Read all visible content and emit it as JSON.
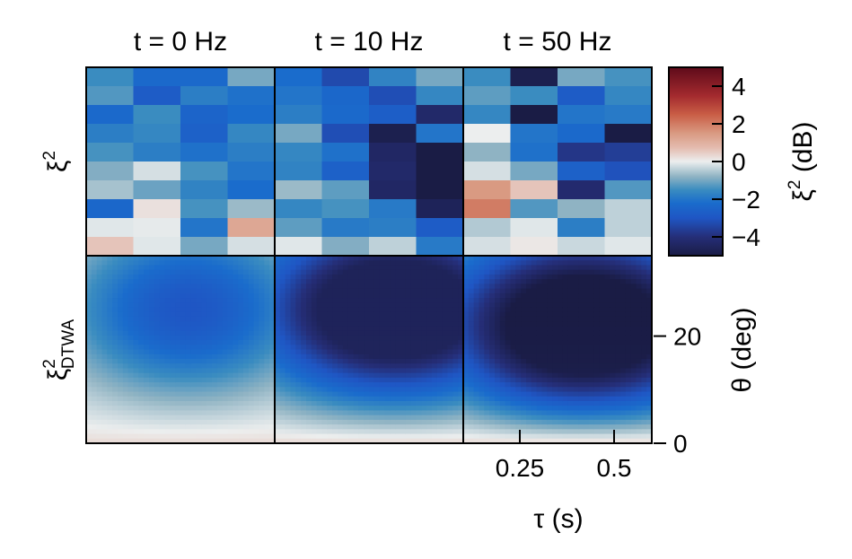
{
  "figure": {
    "row_labels": [
      {
        "base": "ξ",
        "sup": "2",
        "sub": ""
      },
      {
        "base": "ξ",
        "sup": "2",
        "sub": "DTWA"
      }
    ]
  },
  "colorbar": {
    "label_base": "ξ",
    "label_sup": "2",
    "label_rest": " (dB)",
    "ticks": [
      {
        "value": 4,
        "label": "4"
      },
      {
        "value": 2,
        "label": "2"
      },
      {
        "value": 0,
        "label": "0"
      },
      {
        "value": -2,
        "label": "−2"
      },
      {
        "value": -4,
        "label": "−4"
      }
    ],
    "range": [
      -5,
      5
    ],
    "stops": [
      {
        "v": -5,
        "color": "#1a1c45"
      },
      {
        "v": -4,
        "color": "#252e78"
      },
      {
        "v": -3,
        "color": "#1f56c4"
      },
      {
        "v": -2.2,
        "color": "#1a6ccc"
      },
      {
        "v": -1.5,
        "color": "#3a8cc0"
      },
      {
        "v": -0.8,
        "color": "#8fb3c3"
      },
      {
        "v": 0,
        "color": "#eceeee"
      },
      {
        "v": 0.7,
        "color": "#e4bdb1"
      },
      {
        "v": 1.5,
        "color": "#d99a82"
      },
      {
        "v": 2.5,
        "color": "#c95d45"
      },
      {
        "v": 3.5,
        "color": "#a32a2e"
      },
      {
        "v": 5,
        "color": "#5e0a1a"
      }
    ]
  },
  "chart_data": [
    {
      "type": "heatmap",
      "title": "t = 0 Hz",
      "row": "ξ²",
      "rows": 10,
      "cols": 4,
      "values": [
        [
          -1.5,
          -2.3,
          -2.3,
          -1.0
        ],
        [
          -1.3,
          -2.8,
          -1.8,
          -2.1
        ],
        [
          -2.3,
          -1.5,
          -2.5,
          -2.2
        ],
        [
          -1.8,
          -1.6,
          -2.6,
          -1.6
        ],
        [
          -1.4,
          -1.8,
          -2.1,
          -1.8
        ],
        [
          -0.9,
          -0.2,
          -1.4,
          -2.0
        ],
        [
          -0.6,
          -1.1,
          -1.7,
          -2.2
        ],
        [
          -2.4,
          0.2,
          -1.4,
          -0.7
        ],
        [
          -0.1,
          -0.05,
          -2.0,
          1.2
        ],
        [
          0.6,
          -0.1,
          -1.0,
          -0.2
        ]
      ]
    },
    {
      "type": "heatmap",
      "title": "t = 10 Hz",
      "row": "ξ²",
      "rows": 10,
      "cols": 4,
      "values": [
        [
          -2.2,
          -3.3,
          -1.7,
          -1.0
        ],
        [
          -2.0,
          -2.4,
          -3.2,
          -1.6
        ],
        [
          -1.8,
          -2.3,
          -2.7,
          -4.3
        ],
        [
          -1.0,
          -3.2,
          -4.8,
          -2.0
        ],
        [
          -1.6,
          -2.1,
          -4.4,
          -5.0
        ],
        [
          -1.7,
          -2.6,
          -4.3,
          -5.0
        ],
        [
          -0.7,
          -1.2,
          -4.4,
          -5.0
        ],
        [
          -1.6,
          -1.4,
          -1.9,
          -4.6
        ],
        [
          -1.2,
          -1.9,
          -1.8,
          -2.8
        ],
        [
          -0.1,
          -0.9,
          -0.4,
          -1.9
        ]
      ]
    },
    {
      "type": "heatmap",
      "title": "t = 50 Hz",
      "row": "ξ²",
      "rows": 10,
      "cols": 4,
      "values": [
        [
          -1.5,
          -4.8,
          -1.0,
          -1.4
        ],
        [
          -1.2,
          -1.5,
          -2.8,
          -1.6
        ],
        [
          -1.6,
          -5.0,
          -2.0,
          -1.9
        ],
        [
          0.0,
          -2.0,
          -2.3,
          -5.0
        ],
        [
          -0.8,
          -2.1,
          -3.8,
          -3.6
        ],
        [
          -0.2,
          -1.0,
          -2.6,
          -3.1
        ],
        [
          1.5,
          0.6,
          -4.2,
          -1.3
        ],
        [
          2.0,
          -1.3,
          -0.8,
          -0.4
        ],
        [
          -0.5,
          -0.1,
          -1.8,
          -0.4
        ],
        [
          -0.2,
          0.1,
          -0.3,
          -0.1
        ]
      ]
    },
    {
      "type": "heatmap",
      "row": "ξ²_DTWA",
      "title": "",
      "rate": 0,
      "dmin": -3.0
    },
    {
      "type": "heatmap",
      "row": "ξ²_DTWA",
      "title": "",
      "rate": 10,
      "dmin": -4.6
    },
    {
      "type": "heatmap",
      "row": "ξ²_DTWA",
      "title": "",
      "rate": 50,
      "dmin": -5.0,
      "xlabel": "τ (s)",
      "ylabel": "θ (deg)",
      "xlim": [
        0.1,
        0.6
      ],
      "ylim": [
        0,
        35
      ],
      "xticks": [
        {
          "value": 0.25,
          "label": "0.25"
        },
        {
          "value": 0.5,
          "label": "0.5"
        }
      ],
      "yticks": [
        {
          "value": 0,
          "label": "0"
        },
        {
          "value": 20,
          "label": "20"
        }
      ]
    }
  ]
}
